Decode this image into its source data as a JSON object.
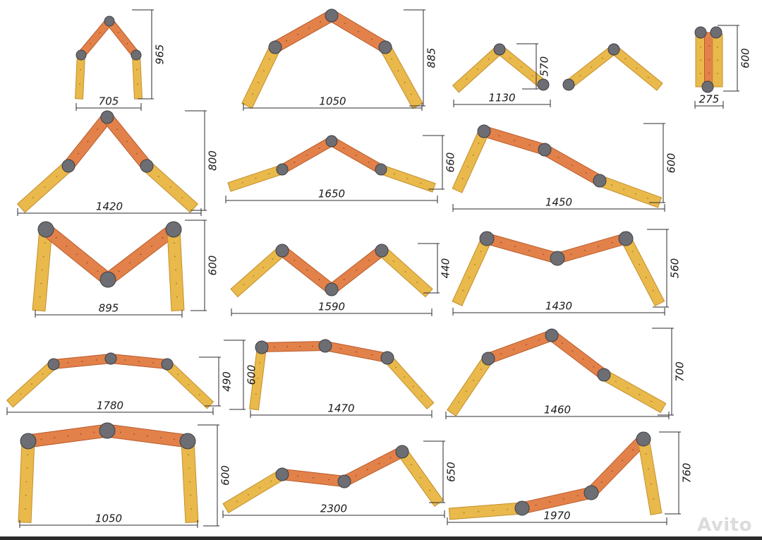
{
  "colors": {
    "end_segment": "#e9b94c",
    "end_stroke": "#c48f2c",
    "mid_segment": "#e2824a",
    "mid_stroke": "#b95a2a",
    "hinge": "#6d6e73",
    "hinge_stroke": "#3e3f44",
    "dimension_line": "#2b2b35"
  },
  "layouts": [
    {
      "id": "s1",
      "width": "705",
      "height": "965"
    },
    {
      "id": "s2",
      "width": "1050",
      "height": "885"
    },
    {
      "id": "s3",
      "width": "1130",
      "height": "570"
    },
    {
      "id": "s4",
      "width": "",
      "height": ""
    },
    {
      "id": "s5",
      "width": "275",
      "height": "600"
    },
    {
      "id": "s6",
      "width": "1420",
      "height": "800"
    },
    {
      "id": "s7",
      "width": "1650",
      "height": "660"
    },
    {
      "id": "s8",
      "width": "1450",
      "height": "600"
    },
    {
      "id": "s9",
      "width": "895",
      "height": "600"
    },
    {
      "id": "s10",
      "width": "1590",
      "height": "440"
    },
    {
      "id": "s11",
      "width": "1430",
      "height": "560"
    },
    {
      "id": "s12",
      "width": "1780",
      "height": "490"
    },
    {
      "id": "s13",
      "width": "1470",
      "height": "600"
    },
    {
      "id": "s14",
      "width": "1460",
      "height": "700"
    },
    {
      "id": "s15",
      "width": "1050",
      "height": "600"
    },
    {
      "id": "s16",
      "width": "2300",
      "height": "650"
    },
    {
      "id": "s17",
      "width": "1970",
      "height": "760"
    }
  ],
  "watermark": "Avito"
}
